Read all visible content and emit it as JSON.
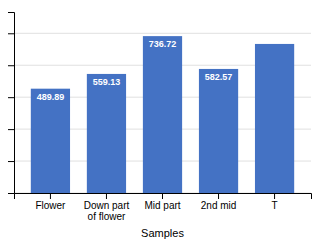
{
  "chart_data": {
    "type": "bar",
    "categories": [
      "Flower",
      "Down part\nof flower",
      "Mid part",
      "2nd mid",
      "T"
    ],
    "values": [
      489.89,
      559.13,
      736.72,
      582.57,
      700.0
    ],
    "value_labels": [
      "489.89",
      "559.13",
      "736.72",
      "582.57",
      null
    ],
    "data_labels": true,
    "color": "#4472C4",
    "xlabel": "Samples",
    "ylim": [
      0,
      850
    ],
    "yticks": [
      0,
      150,
      300,
      450,
      600,
      750
    ],
    "grid": true,
    "tick_labels": "x"
  }
}
